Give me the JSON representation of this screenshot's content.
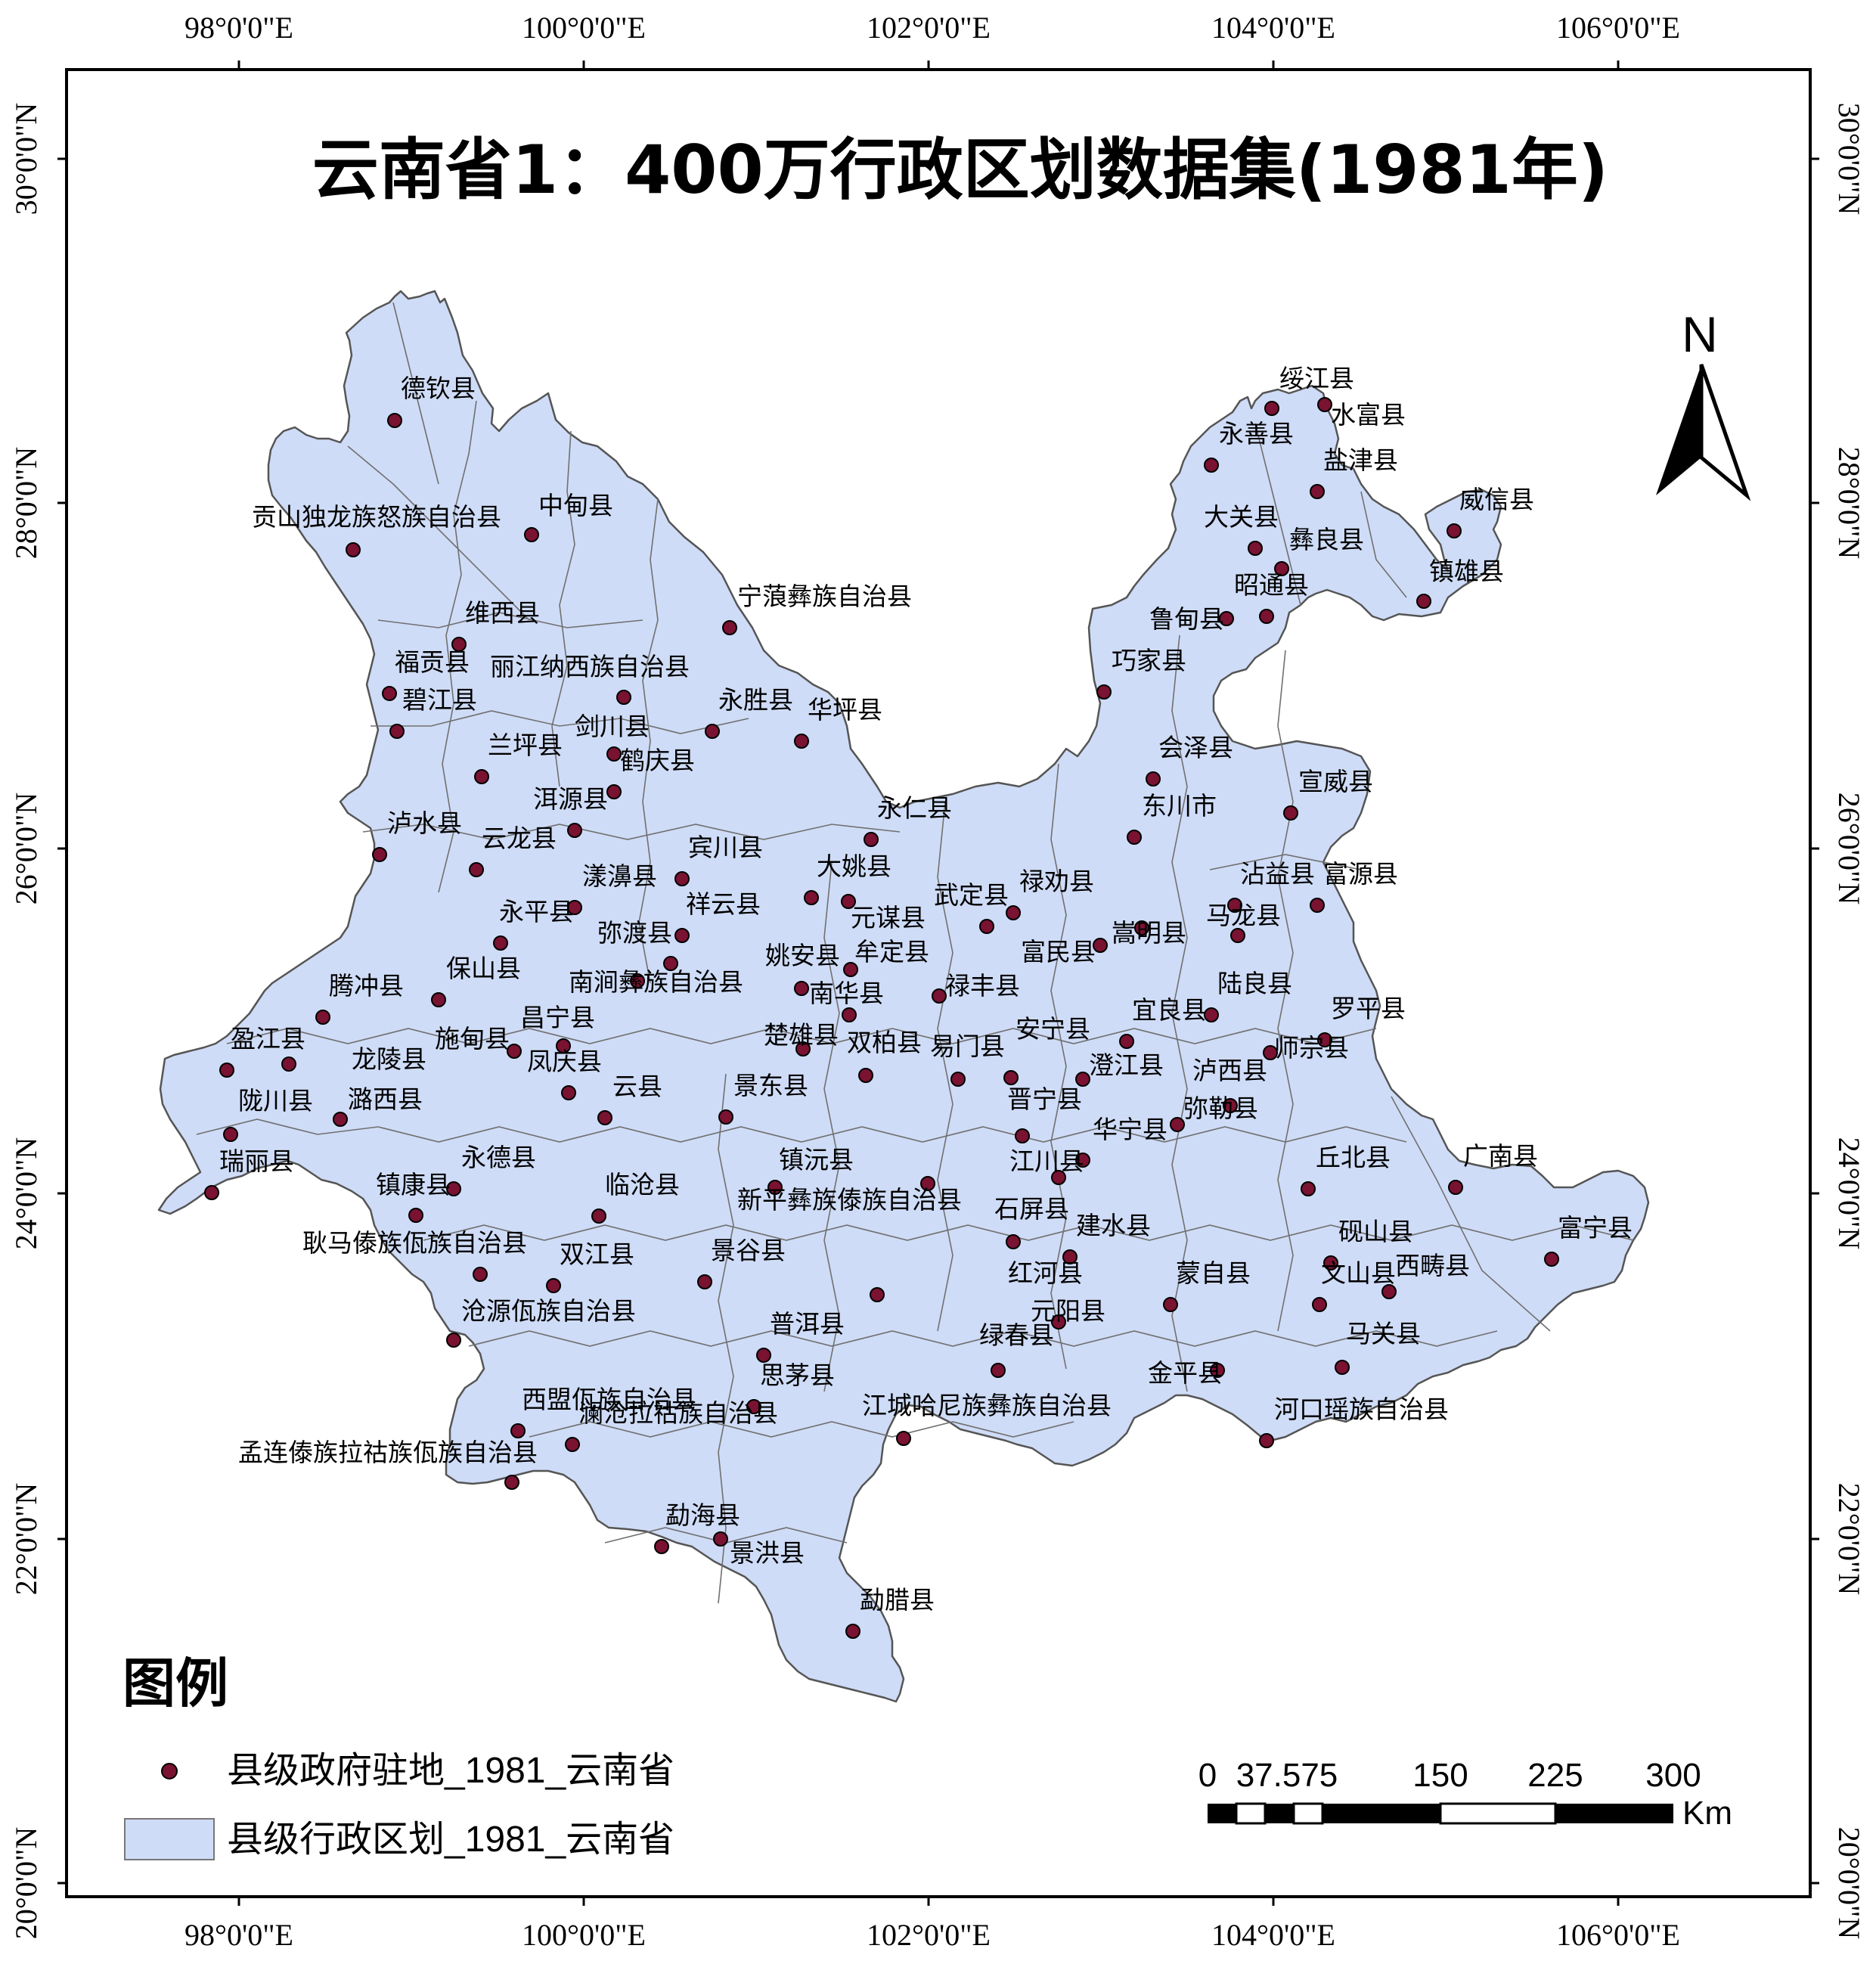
{
  "title": "云南省1：400万行政区划数据集(1981年)",
  "north_label": "N",
  "axes": {
    "top_ticks": [
      "98°0'0\"E",
      "100°0'0\"E",
      "102°0'0\"E",
      "104°0'0\"E",
      "106°0'0\"E"
    ],
    "bottom_ticks": [
      "98°0'0\"E",
      "100°0'0\"E",
      "102°0'0\"E",
      "104°0'0\"E",
      "106°0'0\"E"
    ],
    "left_ticks": [
      "30°0'0\"N",
      "28°0'0\"N",
      "26°0'0\"N",
      "24°0'0\"N",
      "22°0'0\"N",
      "20°0'0\"N"
    ],
    "right_ticks": [
      "30°0'0\"N",
      "28°0'0\"N",
      "26°0'0\"N",
      "24°0'0\"N",
      "22°0'0\"N",
      "20°0'0\"N"
    ]
  },
  "legend": {
    "title": "图例",
    "items": [
      {
        "label": "县级政府驻地_1981_云南省",
        "symbol": "point",
        "color": "#7a1232"
      },
      {
        "label": "县级行政区划_1981_云南省",
        "symbol": "polygon",
        "color": "#cfdcf7"
      }
    ]
  },
  "scale_bar": {
    "labels": [
      "0",
      "37.575",
      "150",
      "225",
      "300"
    ],
    "unit": "Km"
  },
  "colors": {
    "fill": "#cfdcf7",
    "point": "#7a1232",
    "border": "#555555"
  },
  "counties": [
    "德钦县",
    "贡山独龙族怒族自治县",
    "中甸县",
    "维西县",
    "宁蒗彝族自治县",
    "福贡县",
    "丽江纳西族自治县",
    "碧江县",
    "永胜县",
    "华坪县",
    "剑川县",
    "兰坪县",
    "鹤庆县",
    "洱源县",
    "永仁县",
    "泸水县",
    "云龙县",
    "宾川县",
    "大姚县",
    "漾濞县",
    "永平县",
    "祥云县",
    "弥渡县",
    "武定县",
    "禄劝县",
    "元谋县",
    "姚安县",
    "牟定县",
    "嵩明县",
    "富民县",
    "马龙县",
    "沾益县",
    "富源县",
    "南涧彝族自治县",
    "南华县",
    "禄丰县",
    "保山县",
    "腾冲县",
    "昌宁县",
    "陆良县",
    "罗平县",
    "宜良县",
    "盈江县",
    "施甸县",
    "楚雄县",
    "双柏县",
    "易门县",
    "安宁县",
    "师宗县",
    "龙陵县",
    "凤庆县",
    "澄江县",
    "泸西县",
    "潞西县",
    "云县",
    "景东县",
    "晋宁县",
    "弥勒县",
    "陇川县",
    "华宁县",
    "江川县",
    "永德县",
    "瑞丽县",
    "镇沅县",
    "丘北县",
    "广南县",
    "镇康县",
    "临沧县",
    "新平彝族傣族自治县",
    "石屏县",
    "建水县",
    "砚山县",
    "富宁县",
    "耿马傣族佤族自治县",
    "双江县",
    "景谷县",
    "红河县",
    "蒙自县",
    "文山县",
    "西畴县",
    "元阳县",
    "沧源佤族自治县",
    "普洱县",
    "绿春县",
    "马关县",
    "思茅县",
    "金平县",
    "西盟佤族自治县",
    "江城哈尼族彝族自治县",
    "河口瑶族自治县",
    "澜沧拉祜族自治县",
    "孟连傣族拉祜族佤族自治县",
    "勐海县",
    "景洪县",
    "勐腊县",
    "绥江县",
    "水富县",
    "永善县",
    "盐津县",
    "威信县",
    "大关县",
    "彝良县",
    "昭通县",
    "镇雄县",
    "鲁甸县",
    "巧家县",
    "会泽县",
    "宣威县",
    "东川市"
  ]
}
